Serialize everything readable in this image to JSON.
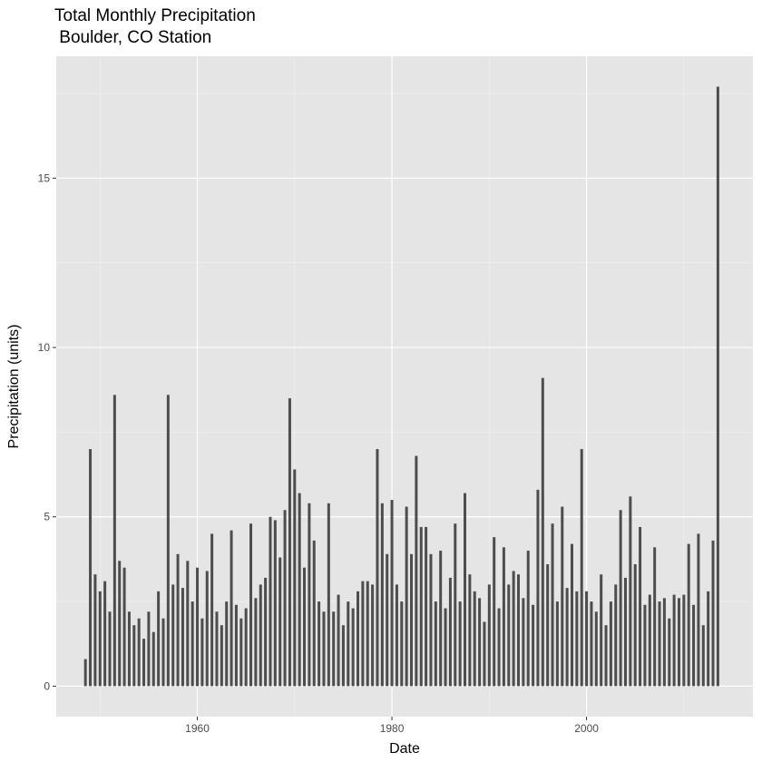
{
  "chart_data": {
    "type": "bar",
    "title": "Total Monthly Precipitation\n Boulder, CO Station",
    "x_label": "Date",
    "y_label": "Precipitation (units)",
    "color": "#4d4d4d",
    "grid": true,
    "xlim": [
      1945.5,
      2017.1
    ],
    "xticks": [
      1960,
      1980,
      2000
    ],
    "xminor": [
      1950,
      1970,
      1990,
      2010
    ],
    "ylim": [
      -0.9,
      18.6
    ],
    "yticks": [
      0,
      5,
      10,
      15
    ],
    "yminor": [
      2.5,
      7.5,
      12.5,
      17.5
    ],
    "x": [
      1948.5,
      1949,
      1949.5,
      1950,
      1950.5,
      1951,
      1951.5,
      1952,
      1952.5,
      1953,
      1953.5,
      1954,
      1954.5,
      1955,
      1955.5,
      1956,
      1956.5,
      1957,
      1957.5,
      1958,
      1958.5,
      1959,
      1959.5,
      1960,
      1960.5,
      1961,
      1961.5,
      1962,
      1962.5,
      1963,
      1963.5,
      1964,
      1964.5,
      1965,
      1965.5,
      1966,
      1966.5,
      1967,
      1967.5,
      1968,
      1968.5,
      1969,
      1969.5,
      1970,
      1970.5,
      1971,
      1971.5,
      1972,
      1972.5,
      1973,
      1973.5,
      1974,
      1974.5,
      1975,
      1975.5,
      1976,
      1976.5,
      1977,
      1977.5,
      1978,
      1978.5,
      1979,
      1979.5,
      1980,
      1980.5,
      1981,
      1981.5,
      1982,
      1982.5,
      1983,
      1983.5,
      1984,
      1984.5,
      1985,
      1985.5,
      1986,
      1986.5,
      1987,
      1987.5,
      1988,
      1988.5,
      1989,
      1989.5,
      1990,
      1990.5,
      1991,
      1991.5,
      1992,
      1992.5,
      1993,
      1993.5,
      1994,
      1994.5,
      1995,
      1995.5,
      1996,
      1996.5,
      1997,
      1997.5,
      1998,
      1998.5,
      1999,
      1999.5,
      2000,
      2000.5,
      2001,
      2001.5,
      2002,
      2002.5,
      2003,
      2003.5,
      2004,
      2004.5,
      2005,
      2005.5,
      2006,
      2006.5,
      2007,
      2007.5,
      2008,
      2008.5,
      2009,
      2009.5,
      2010,
      2010.5,
      2011,
      2011.5,
      2012,
      2012.5,
      2013,
      2013.5
    ],
    "values": [
      0.8,
      7.0,
      3.3,
      2.8,
      3.1,
      2.2,
      8.6,
      3.7,
      3.5,
      2.2,
      1.8,
      2.0,
      1.4,
      2.2,
      1.6,
      2.8,
      2.0,
      8.6,
      3.0,
      3.9,
      2.9,
      3.7,
      2.5,
      3.5,
      2.0,
      3.4,
      4.5,
      2.2,
      1.8,
      2.5,
      4.6,
      2.4,
      2.0,
      2.3,
      4.8,
      2.6,
      3.0,
      3.2,
      5.0,
      4.9,
      3.8,
      5.2,
      8.5,
      6.4,
      5.7,
      3.5,
      5.4,
      4.3,
      2.5,
      2.2,
      5.4,
      2.2,
      2.7,
      1.8,
      2.5,
      2.3,
      2.8,
      3.1,
      3.1,
      3.0,
      7.0,
      5.4,
      3.9,
      5.5,
      3.0,
      2.5,
      5.3,
      3.9,
      6.8,
      4.7,
      4.7,
      3.9,
      2.5,
      4.0,
      2.3,
      3.2,
      4.8,
      2.5,
      5.7,
      3.3,
      2.8,
      2.6,
      1.9,
      3.0,
      4.4,
      2.3,
      4.1,
      3.0,
      3.4,
      3.3,
      2.6,
      4.0,
      2.4,
      5.8,
      9.1,
      3.6,
      4.8,
      2.5,
      5.3,
      2.9,
      4.2,
      2.8,
      7.0,
      2.8,
      2.5,
      2.2,
      3.3,
      1.8,
      2.5,
      3.0,
      5.2,
      3.2,
      5.6,
      3.6,
      4.7,
      2.4,
      2.7,
      4.1,
      2.5,
      2.6,
      2.0,
      2.7,
      2.6,
      2.7,
      4.2,
      2.4,
      4.5,
      1.8,
      2.8,
      4.3,
      17.7
    ]
  }
}
